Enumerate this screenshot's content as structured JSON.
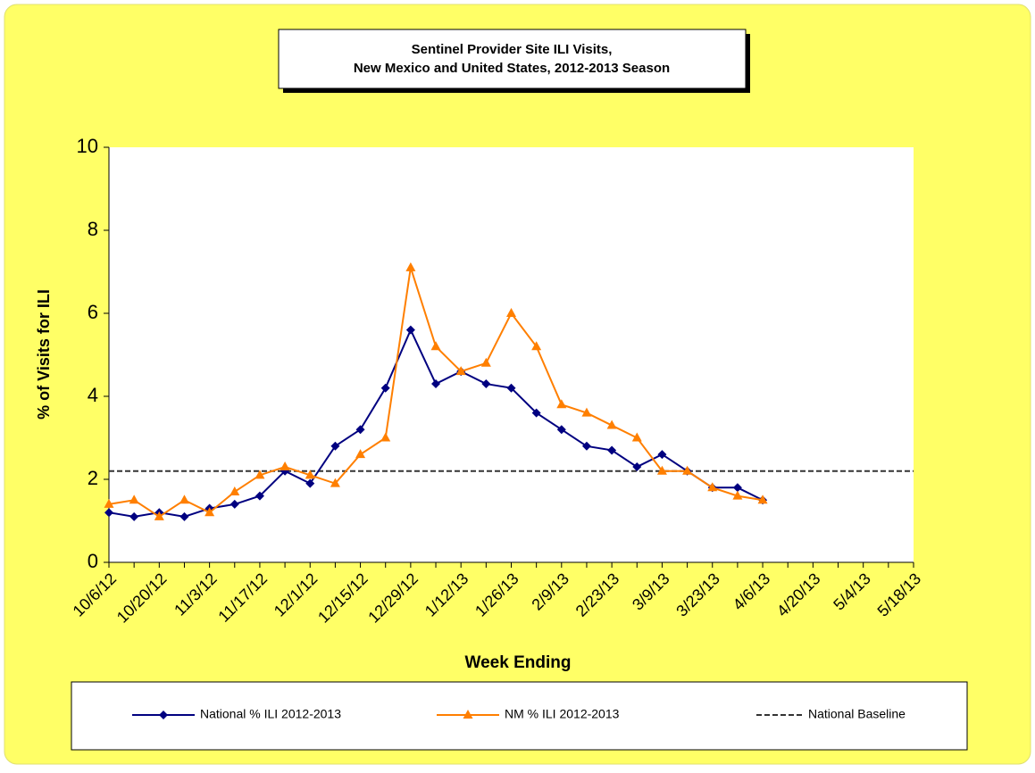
{
  "chart_data": {
    "type": "line",
    "title": "Sentinel Provider Site ILI Visits,",
    "subtitle": "New Mexico and United States,  2012-2013 Season",
    "x_label": "Week Ending",
    "y_label": "% of Visits for ILI",
    "categories": [
      "10/6/12",
      null,
      "10/20/12",
      null,
      "11/3/12",
      null,
      "11/17/12",
      null,
      "12/1/12",
      null,
      "12/15/12",
      null,
      "12/29/12",
      null,
      "1/12/13",
      null,
      "1/26/13",
      null,
      "2/9/13",
      null,
      "2/23/13",
      null,
      "3/9/13",
      null,
      "3/23/13",
      null,
      "4/6/13",
      null,
      "4/20/13",
      null,
      "5/4/13",
      null,
      "5/18/13"
    ],
    "series": [
      {
        "name": "National % ILI 2012-2013",
        "color": "#000080",
        "marker": "diamond",
        "values": [
          1.2,
          1.1,
          1.2,
          1.1,
          1.3,
          1.4,
          1.6,
          2.2,
          1.9,
          2.8,
          3.2,
          4.2,
          5.6,
          4.3,
          4.6,
          4.3,
          4.2,
          3.6,
          3.2,
          2.8,
          2.7,
          2.3,
          2.6,
          2.2,
          1.8,
          1.8,
          1.5,
          null,
          null,
          null,
          null,
          null,
          null
        ]
      },
      {
        "name": "NM % ILI 2012-2013",
        "color": "#ff7f00",
        "marker": "triangle",
        "values": [
          1.4,
          1.5,
          1.1,
          1.5,
          1.2,
          1.7,
          2.1,
          2.3,
          2.1,
          1.9,
          2.6,
          3.0,
          7.1,
          5.2,
          4.6,
          4.8,
          6.0,
          5.2,
          3.8,
          3.6,
          3.3,
          3.0,
          2.2,
          2.2,
          1.8,
          1.6,
          1.5,
          null,
          null,
          null,
          null,
          null,
          null
        ]
      }
    ],
    "baseline": {
      "name": "National Baseline",
      "value": 2.2,
      "color": "#333333"
    },
    "ylim": [
      0,
      10
    ],
    "yticks": [
      0,
      2,
      4,
      6,
      8,
      10
    ]
  }
}
